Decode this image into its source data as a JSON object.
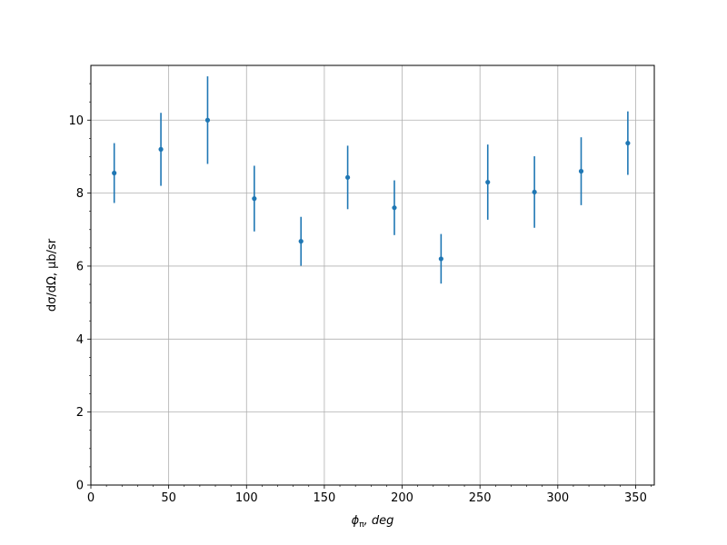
{
  "chart_data": {
    "type": "scatter",
    "title": "",
    "xlabel": "ϕπ, deg",
    "ylabel": "dσ/dΩ, μb/sr",
    "xlim": [
      0,
      362
    ],
    "ylim": [
      0,
      11.5
    ],
    "grid": true,
    "x_ticks": [
      0,
      50,
      100,
      150,
      200,
      250,
      300,
      350
    ],
    "y_ticks": [
      0,
      2,
      4,
      6,
      8,
      10
    ],
    "series": [
      {
        "color": "#1f77b4",
        "x": [
          15,
          45,
          75,
          105,
          135,
          165,
          195,
          225,
          255,
          285,
          315,
          345
        ],
        "y": [
          8.55,
          9.2,
          10.0,
          7.85,
          6.68,
          8.43,
          7.6,
          6.2,
          8.3,
          8.03,
          8.6,
          9.37
        ],
        "err": [
          0.82,
          1.0,
          1.2,
          0.9,
          0.67,
          0.87,
          0.75,
          0.68,
          1.03,
          0.98,
          0.93,
          0.87
        ]
      }
    ]
  },
  "labels": {
    "xlabel_main": "ϕ",
    "xlabel_sub": "π",
    "xlabel_rest": ", deg",
    "ylabel": "dσ/dΩ, μb/sr"
  }
}
